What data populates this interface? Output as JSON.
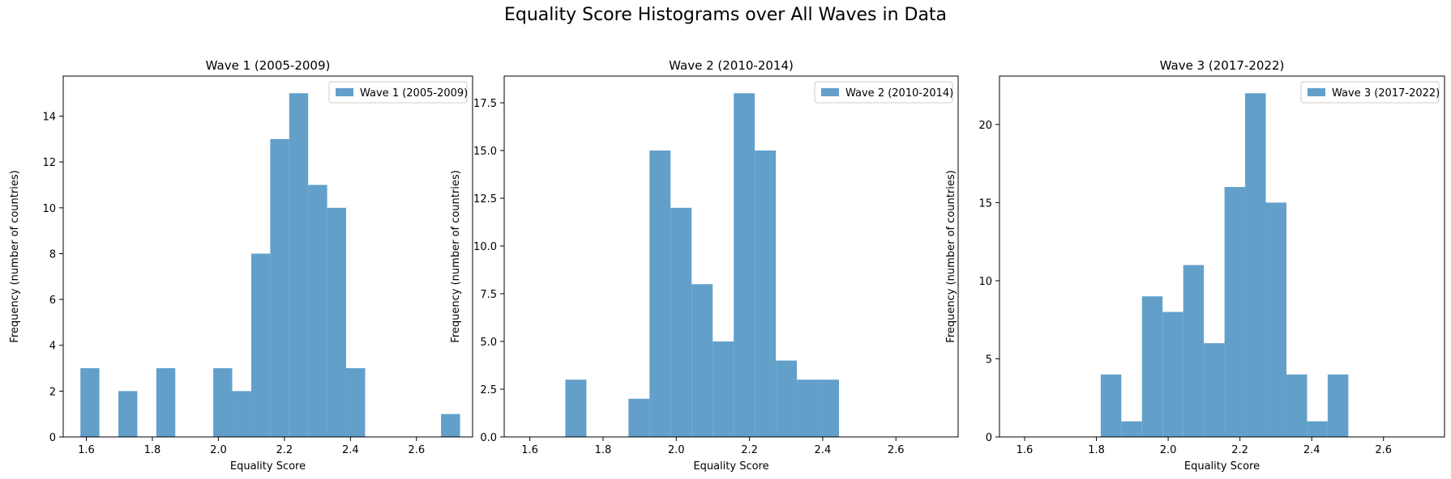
{
  "figure": {
    "suptitle": "Equality Score Histograms over All Waves in Data",
    "bar_color": "#62a0ca",
    "bar_alpha": 0.7
  },
  "chart_data": [
    {
      "type": "bar",
      "title": "Wave 1 (2005-2009)",
      "xlabel": "Equality Score",
      "ylabel": "Frequency (number of countries)",
      "legend": "Wave 1 (2005-2009)",
      "legend_placement": "top-right",
      "grid": false,
      "xlim": [
        1.53,
        2.77
      ],
      "ylim": [
        0,
        15.75
      ],
      "xticks": [
        "1.6",
        "1.8",
        "2.0",
        "2.2",
        "2.4",
        "2.6"
      ],
      "xtick_values": [
        1.6,
        1.8,
        2.0,
        2.2,
        2.4,
        2.6
      ],
      "yticks": [
        "0",
        "2",
        "4",
        "6",
        "8",
        "10",
        "12",
        "14"
      ],
      "ytick_values": [
        0,
        2,
        4,
        6,
        8,
        10,
        12,
        14
      ],
      "bin_edges": [
        1.582,
        1.6395,
        1.697,
        1.7545,
        1.812,
        1.8695,
        1.927,
        1.9845,
        2.042,
        2.0995,
        2.157,
        2.2145,
        2.272,
        2.3295,
        2.387,
        2.4445,
        2.502,
        2.5595,
        2.617,
        2.6745,
        2.732
      ],
      "counts": [
        3,
        0,
        2,
        0,
        3,
        0,
        0,
        3,
        2,
        8,
        13,
        15,
        11,
        10,
        3,
        0,
        0,
        0,
        0,
        1
      ]
    },
    {
      "type": "bar",
      "title": "Wave 2 (2010-2014)",
      "xlabel": "Equality Score",
      "ylabel": "Frequency (number of countries)",
      "legend": "Wave 2 (2010-2014)",
      "legend_placement": "top-right",
      "grid": false,
      "xlim": [
        1.53,
        2.77
      ],
      "ylim": [
        0,
        18.9
      ],
      "xticks": [
        "1.6",
        "1.8",
        "2.0",
        "2.2",
        "2.4",
        "2.6"
      ],
      "xtick_values": [
        1.6,
        1.8,
        2.0,
        2.2,
        2.4,
        2.6
      ],
      "yticks": [
        "0.0",
        "2.5",
        "5.0",
        "7.5",
        "10.0",
        "12.5",
        "15.0",
        "17.5"
      ],
      "ytick_values": [
        0,
        2.5,
        5,
        7.5,
        10,
        12.5,
        15,
        17.5
      ],
      "bin_edges": [
        1.697,
        1.7545,
        1.812,
        1.8695,
        1.927,
        1.9845,
        2.042,
        2.0995,
        2.157,
        2.2145,
        2.272,
        2.3295,
        2.387,
        2.4445
      ],
      "counts": [
        3,
        0,
        0,
        2,
        15,
        12,
        8,
        5,
        18,
        15,
        4,
        3,
        3
      ]
    },
    {
      "type": "bar",
      "title": "Wave 3 (2017-2022)",
      "xlabel": "Equality Score",
      "ylabel": "Frequency (number of countries)",
      "legend": "Wave 3 (2017-2022)",
      "legend_placement": "top-right",
      "grid": false,
      "xlim": [
        1.53,
        2.77
      ],
      "ylim": [
        0,
        23.1
      ],
      "xticks": [
        "1.6",
        "1.8",
        "2.0",
        "2.2",
        "2.4",
        "2.6"
      ],
      "xtick_values": [
        1.6,
        1.8,
        2.0,
        2.2,
        2.4,
        2.6
      ],
      "yticks": [
        "0",
        "5",
        "10",
        "15",
        "20"
      ],
      "ytick_values": [
        0,
        5,
        10,
        15,
        20
      ],
      "bin_edges": [
        1.812,
        1.8695,
        1.927,
        1.9845,
        2.042,
        2.0995,
        2.157,
        2.2145,
        2.272,
        2.3295,
        2.387,
        2.4445,
        2.502
      ],
      "counts": [
        4,
        1,
        9,
        8,
        11,
        6,
        16,
        22,
        15,
        4,
        1,
        4
      ]
    }
  ]
}
